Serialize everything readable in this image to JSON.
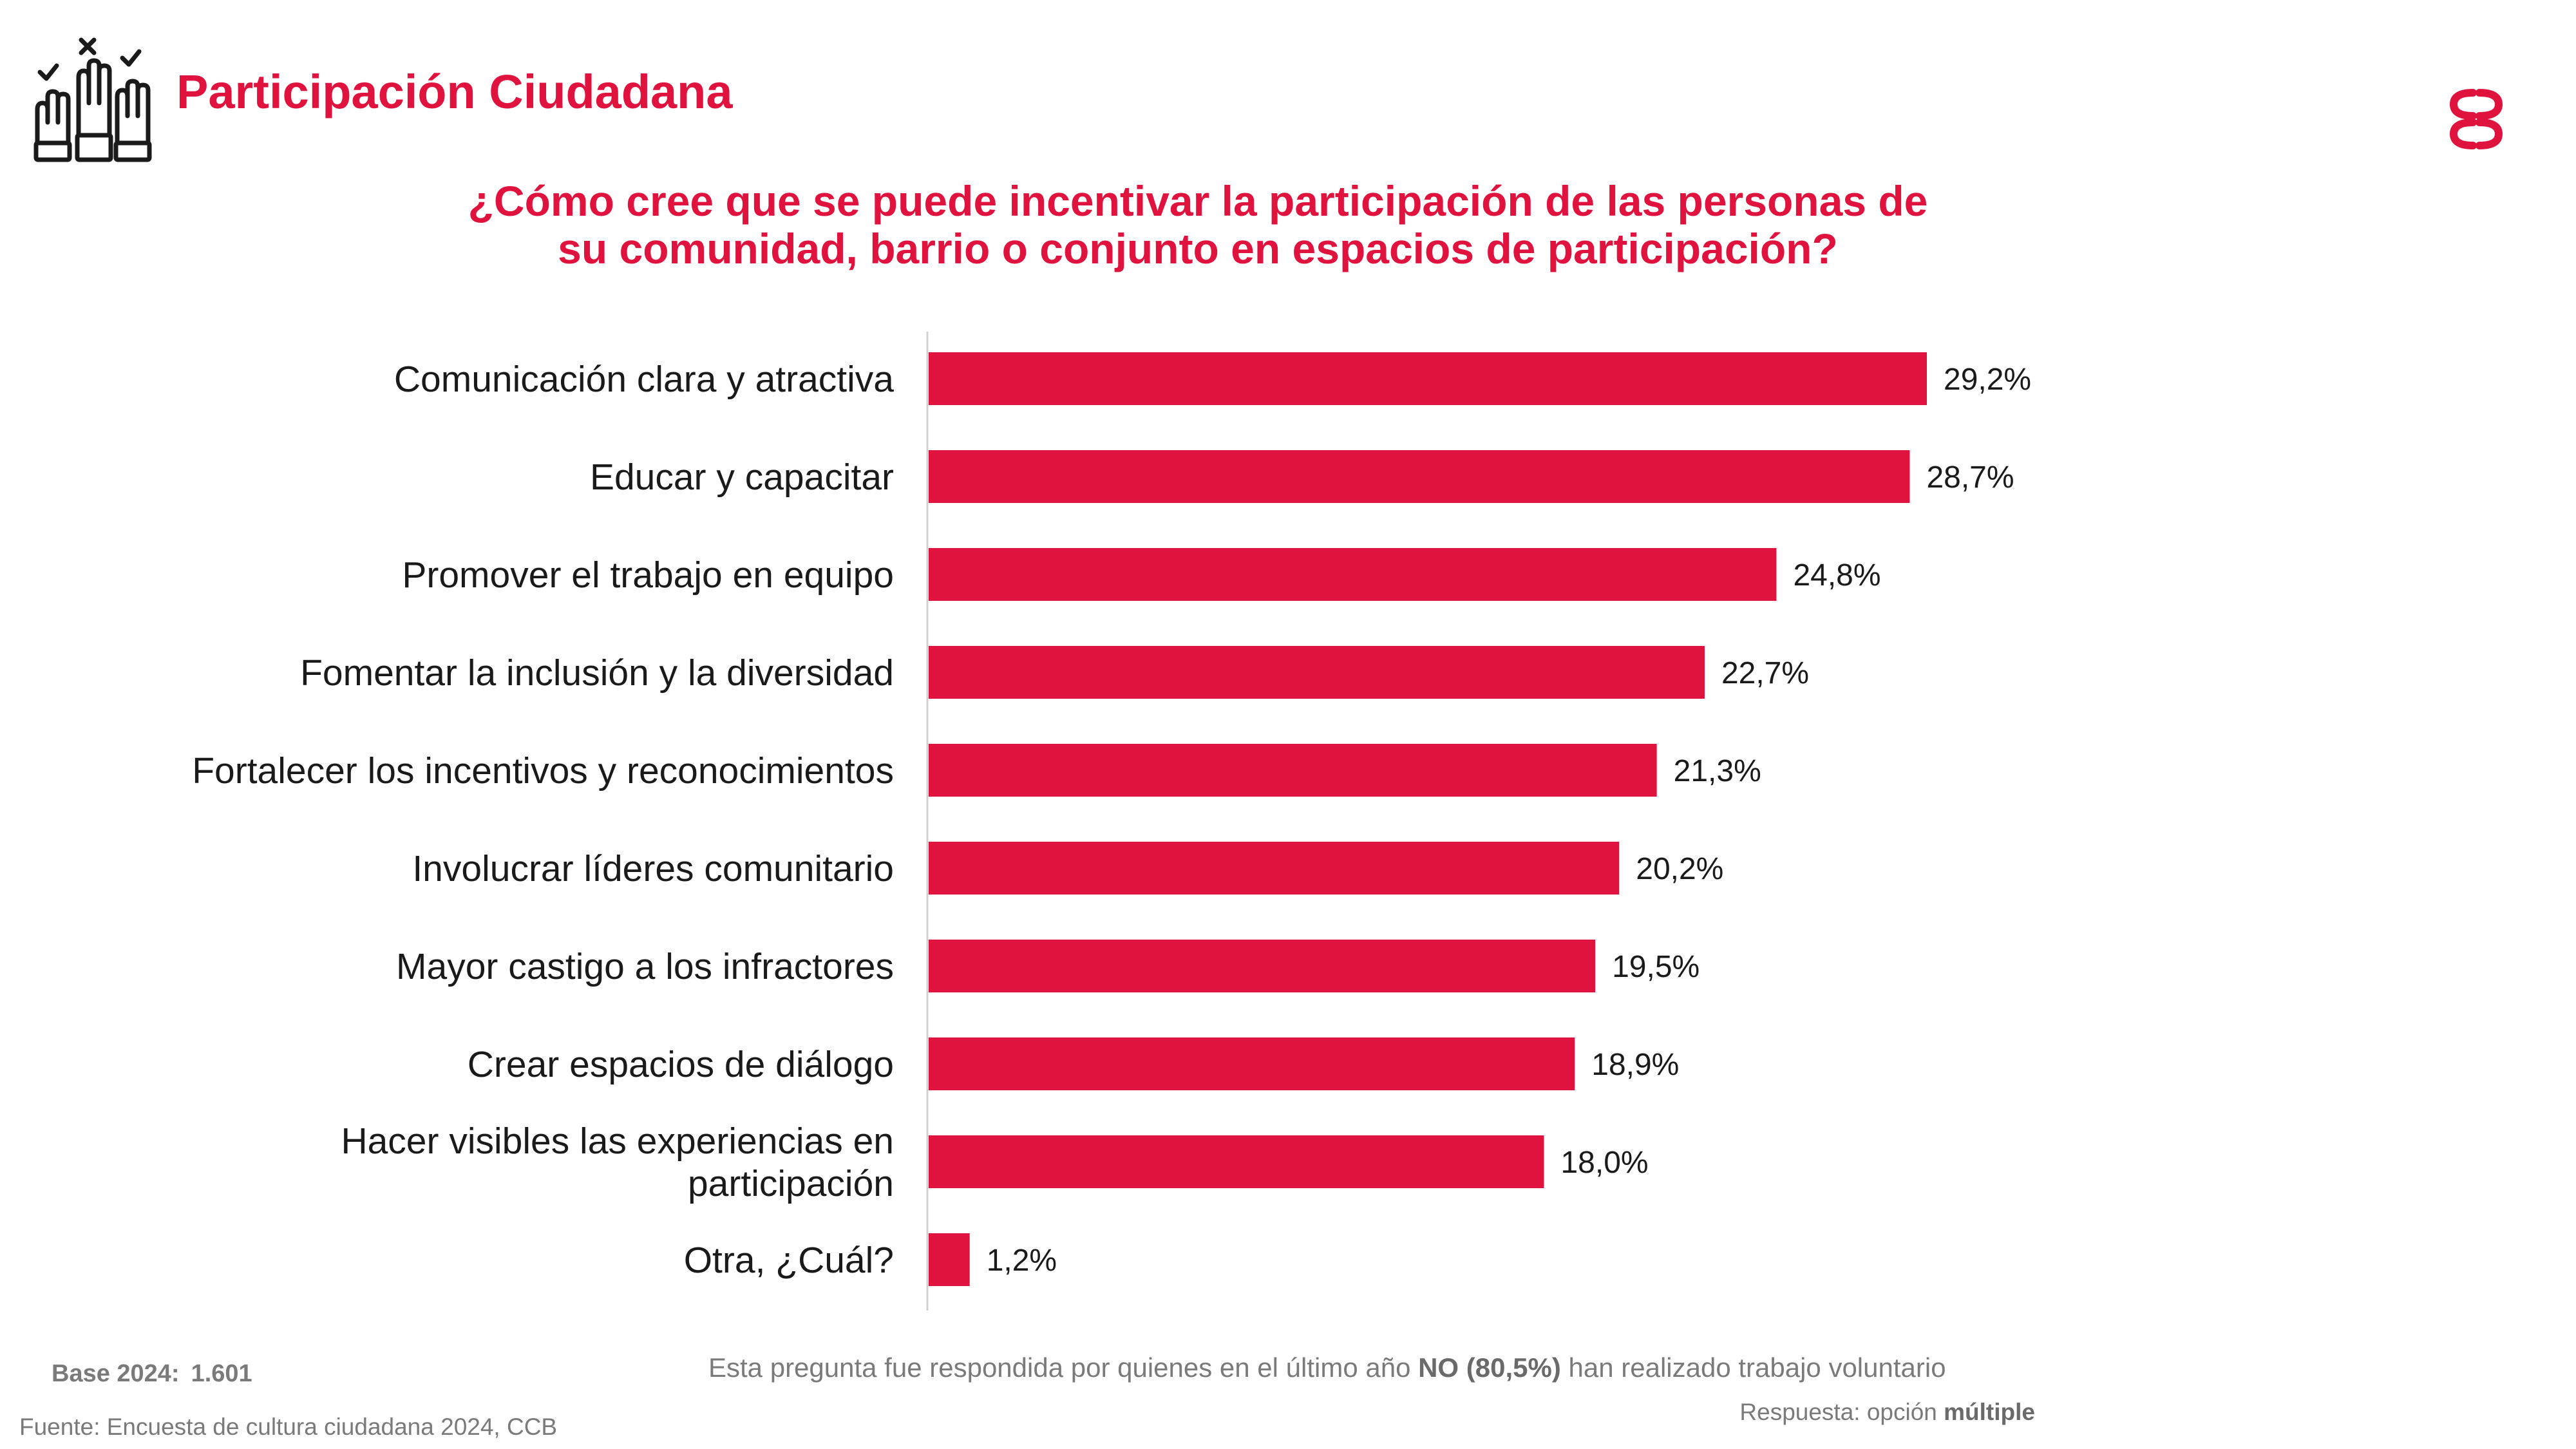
{
  "header": {
    "title": "Participación Ciudadana",
    "icon": "raised-hands-voting-icon",
    "logo": "ccb-logo-icon"
  },
  "colors": {
    "accent": "#e0133f",
    "bar": "#e0133f",
    "note": "#7a7a7a"
  },
  "question": {
    "line1": "¿Cómo cree que se puede incentivar la participación de las personas de",
    "line2": "su comunidad, barrio o conjunto en espacios de participación?"
  },
  "chart_data": {
    "type": "bar",
    "orientation": "horizontal",
    "title": "¿Cómo cree que se puede incentivar la participación de las personas de su comunidad, barrio o conjunto en espacios de participación?",
    "xlabel": "",
    "ylabel": "",
    "grid": false,
    "legend": "none",
    "xlim": [
      0,
      29.2
    ],
    "categories": [
      [
        "Comunicación clara y atractiva"
      ],
      [
        "Educar y capacitar"
      ],
      [
        "Promover el trabajo en equipo"
      ],
      [
        "Fomentar la inclusión y la diversidad"
      ],
      [
        "Fortalecer los incentivos y reconocimientos"
      ],
      [
        "Involucrar líderes comunitario"
      ],
      [
        "Mayor castigo a los infractores"
      ],
      [
        "Crear espacios de diálogo"
      ],
      [
        "Hacer visibles las experiencias en",
        "participación"
      ],
      [
        "Otra, ¿Cuál?"
      ]
    ],
    "values": [
      29.2,
      28.7,
      24.8,
      22.7,
      21.3,
      20.2,
      19.5,
      18.9,
      18.0,
      1.2
    ],
    "value_labels": [
      "29,2%",
      "28,7%",
      "24,8%",
      "22,7%",
      "21,3%",
      "20,2%",
      "19,5%",
      "18,9%",
      "18,0%",
      "1,2%"
    ]
  },
  "footer": {
    "base_label": "Base 2024:",
    "base_value": "1.601",
    "note_prefix": "Esta pregunta fue respondida por quienes en el último año ",
    "note_bold": "NO (80,5%)",
    "note_suffix": " han realizado trabajo voluntario",
    "response_prefix": "Respuesta: opción ",
    "response_bold": "múltiple",
    "source": "Fuente: Encuesta de cultura ciudadana 2024, CCB"
  }
}
